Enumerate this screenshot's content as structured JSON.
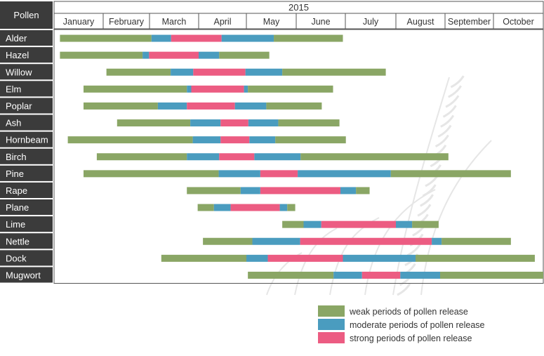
{
  "chart_data": {
    "type": "gantt",
    "header_left": "Pollen",
    "year_label": "2015",
    "months": [
      "January",
      "February",
      "March",
      "April",
      "May",
      "June",
      "July",
      "August",
      "September",
      "October"
    ],
    "colors": {
      "weak": "#8aa665",
      "moderate": "#4a9cbf",
      "strong": "#ec5c82",
      "label_bg": "#3b3b3b",
      "label_text": "#ffffff",
      "header_bg": "#3b3b3b"
    },
    "legend": [
      {
        "key": "weak",
        "label": "weak periods of pollen release"
      },
      {
        "key": "moderate",
        "label": "moderate periods of pollen release"
      },
      {
        "key": "strong",
        "label": "strong periods of pollen release"
      }
    ],
    "rows": [
      {
        "name": "Alder",
        "segments": [
          {
            "level": "weak",
            "start": 0.12,
            "end": 2.04
          },
          {
            "level": "moderate",
            "start": 2.04,
            "end": 2.44
          },
          {
            "level": "strong",
            "start": 2.44,
            "end": 3.48
          },
          {
            "level": "moderate",
            "start": 3.48,
            "end": 4.55
          },
          {
            "level": "weak",
            "start": 4.55,
            "end": 5.95
          }
        ]
      },
      {
        "name": "Hazel",
        "segments": [
          {
            "level": "weak",
            "start": 0.12,
            "end": 1.85
          },
          {
            "level": "moderate",
            "start": 1.85,
            "end": 1.99
          },
          {
            "level": "strong",
            "start": 1.99,
            "end": 3.0
          },
          {
            "level": "moderate",
            "start": 3.0,
            "end": 3.43
          },
          {
            "level": "weak",
            "start": 3.43,
            "end": 4.46
          }
        ]
      },
      {
        "name": "Willow",
        "segments": [
          {
            "level": "weak",
            "start": 1.07,
            "end": 2.43
          },
          {
            "level": "moderate",
            "start": 2.43,
            "end": 2.89
          },
          {
            "level": "strong",
            "start": 2.89,
            "end": 3.98
          },
          {
            "level": "moderate",
            "start": 3.98,
            "end": 4.72
          },
          {
            "level": "weak",
            "start": 4.72,
            "end": 6.8
          }
        ]
      },
      {
        "name": "Elm",
        "segments": [
          {
            "level": "weak",
            "start": 0.6,
            "end": 2.76
          },
          {
            "level": "moderate",
            "start": 2.76,
            "end": 2.85
          },
          {
            "level": "strong",
            "start": 2.85,
            "end": 3.95
          },
          {
            "level": "moderate",
            "start": 3.95,
            "end": 4.03
          },
          {
            "level": "weak",
            "start": 4.03,
            "end": 5.75
          }
        ]
      },
      {
        "name": "Poplar",
        "segments": [
          {
            "level": "weak",
            "start": 0.6,
            "end": 2.17
          },
          {
            "level": "moderate",
            "start": 2.17,
            "end": 2.76
          },
          {
            "level": "strong",
            "start": 2.76,
            "end": 3.76
          },
          {
            "level": "moderate",
            "start": 3.76,
            "end": 4.4
          },
          {
            "level": "weak",
            "start": 4.4,
            "end": 5.52
          }
        ]
      },
      {
        "name": "Ash",
        "segments": [
          {
            "level": "weak",
            "start": 1.3,
            "end": 2.83
          },
          {
            "level": "moderate",
            "start": 2.83,
            "end": 3.46
          },
          {
            "level": "strong",
            "start": 3.46,
            "end": 4.04
          },
          {
            "level": "moderate",
            "start": 4.04,
            "end": 4.64
          },
          {
            "level": "weak",
            "start": 4.64,
            "end": 5.88
          }
        ]
      },
      {
        "name": "Hornbeam",
        "segments": [
          {
            "level": "weak",
            "start": 0.28,
            "end": 2.88
          },
          {
            "level": "moderate",
            "start": 2.88,
            "end": 3.46
          },
          {
            "level": "strong",
            "start": 3.46,
            "end": 4.06
          },
          {
            "level": "moderate",
            "start": 4.06,
            "end": 4.58
          },
          {
            "level": "weak",
            "start": 4.58,
            "end": 6.01
          }
        ]
      },
      {
        "name": "Birch",
        "segments": [
          {
            "level": "weak",
            "start": 0.87,
            "end": 2.76
          },
          {
            "level": "moderate",
            "start": 2.76,
            "end": 3.43
          },
          {
            "level": "strong",
            "start": 3.43,
            "end": 4.16
          },
          {
            "level": "moderate",
            "start": 4.16,
            "end": 5.09
          },
          {
            "level": "weak",
            "start": 5.09,
            "end": 8.07
          }
        ]
      },
      {
        "name": "Pine",
        "segments": [
          {
            "level": "weak",
            "start": 0.6,
            "end": 3.42
          },
          {
            "level": "moderate",
            "start": 3.42,
            "end": 4.28
          },
          {
            "level": "strong",
            "start": 4.28,
            "end": 5.03
          },
          {
            "level": "moderate",
            "start": 5.03,
            "end": 6.9
          },
          {
            "level": "weak",
            "start": 6.9,
            "end": 9.35
          }
        ]
      },
      {
        "name": "Rape",
        "segments": [
          {
            "level": "weak",
            "start": 2.76,
            "end": 3.88
          },
          {
            "level": "moderate",
            "start": 3.88,
            "end": 4.28
          },
          {
            "level": "strong",
            "start": 4.28,
            "end": 5.9
          },
          {
            "level": "moderate",
            "start": 5.9,
            "end": 6.21
          },
          {
            "level": "weak",
            "start": 6.21,
            "end": 6.48
          }
        ]
      },
      {
        "name": "Plane",
        "segments": [
          {
            "level": "weak",
            "start": 2.98,
            "end": 3.32
          },
          {
            "level": "moderate",
            "start": 3.32,
            "end": 3.67
          },
          {
            "level": "strong",
            "start": 3.67,
            "end": 4.67
          },
          {
            "level": "moderate",
            "start": 4.67,
            "end": 4.82
          },
          {
            "level": "weak",
            "start": 4.82,
            "end": 4.98
          }
        ]
      },
      {
        "name": "Lime",
        "segments": [
          {
            "level": "weak",
            "start": 4.72,
            "end": 5.15
          },
          {
            "level": "moderate",
            "start": 5.15,
            "end": 5.51
          },
          {
            "level": "strong",
            "start": 5.51,
            "end": 7.0
          },
          {
            "level": "moderate",
            "start": 7.0,
            "end": 7.33
          },
          {
            "level": "weak",
            "start": 7.33,
            "end": 7.87
          }
        ]
      },
      {
        "name": "Nettle",
        "segments": [
          {
            "level": "weak",
            "start": 3.09,
            "end": 4.12
          },
          {
            "level": "moderate",
            "start": 4.12,
            "end": 5.08
          },
          {
            "level": "strong",
            "start": 5.08,
            "end": 7.73
          },
          {
            "level": "moderate",
            "start": 7.73,
            "end": 7.93
          },
          {
            "level": "weak",
            "start": 7.93,
            "end": 9.35
          }
        ]
      },
      {
        "name": "Dock",
        "segments": [
          {
            "level": "weak",
            "start": 2.24,
            "end": 4.0
          },
          {
            "level": "moderate",
            "start": 4.0,
            "end": 4.43
          },
          {
            "level": "strong",
            "start": 4.43,
            "end": 5.95
          },
          {
            "level": "moderate",
            "start": 5.95,
            "end": 7.4
          },
          {
            "level": "weak",
            "start": 7.4,
            "end": 9.83
          }
        ]
      },
      {
        "name": "Mugwort",
        "segments": [
          {
            "level": "weak",
            "start": 4.03,
            "end": 5.76
          },
          {
            "level": "moderate",
            "start": 5.76,
            "end": 6.33
          },
          {
            "level": "strong",
            "start": 6.33,
            "end": 7.09
          },
          {
            "level": "moderate",
            "start": 7.09,
            "end": 7.9
          },
          {
            "level": "weak",
            "start": 7.9,
            "end": 10.0
          }
        ]
      }
    ]
  }
}
